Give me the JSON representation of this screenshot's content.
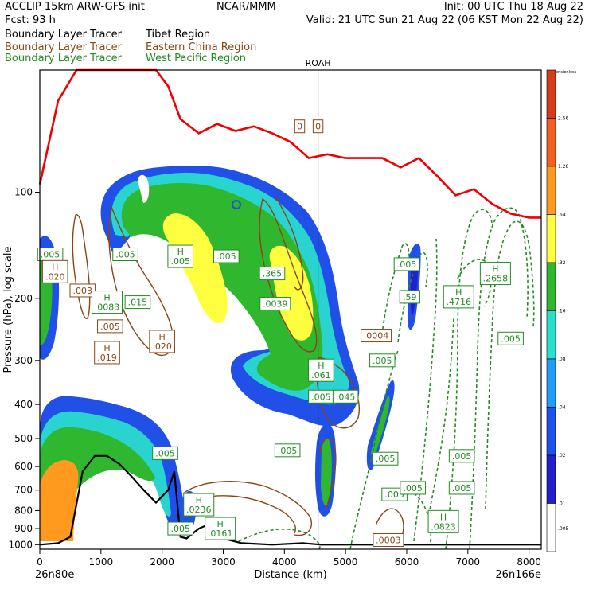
{
  "header": {
    "line1_left": "ACCLIP 15km ARW-GFS init",
    "line1_center": "NCAR/MMM",
    "line1_right": "Init: 00 UTC Thu 18 Aug 22",
    "line2_left": "Fcst:    93 h",
    "line2_right": "Valid: 21 UTC Sun 21 Aug 22 (06 KST Mon 22 Aug 22)",
    "legend": [
      {
        "tracer": "Boundary Layer Tracer",
        "region": "Tibet Region",
        "color": "#000000"
      },
      {
        "tracer": "Boundary Layer Tracer",
        "region": "Eastern China Region",
        "color": "#8b4513"
      },
      {
        "tracer": "Boundary Layer Tracer",
        "region": "West Pacific Region",
        "color": "#228b22"
      }
    ]
  },
  "chart_data": {
    "type": "cross-section",
    "xlabel": "Distance (km)",
    "ylabel": "Pressure (hPa), log scale",
    "x_ticks": [
      0,
      1000,
      2000,
      3000,
      4000,
      5000,
      6000,
      7000,
      8000
    ],
    "y_ticks": [
      100,
      200,
      300,
      400,
      500,
      600,
      700,
      800,
      900,
      1000
    ],
    "xlim": [
      0,
      8200
    ],
    "ylim": [
      1030,
      45
    ],
    "y_scale": "log",
    "left_endpoint": "26n80e",
    "right_endpoint": "26n166e",
    "vertical_marker": {
      "label": "ROAH",
      "x_km": 4550
    },
    "colorbar": {
      "title": "Dimensionless",
      "levels": [
        "2.56",
        "1.28",
        ".64",
        ".32",
        ".16",
        ".08",
        ".04",
        ".02",
        ".01",
        ".005"
      ],
      "colors": [
        "#d93a1a",
        "#f4601f",
        "#ff9a1f",
        "#ffff3f",
        "#2fb82f",
        "#29e0d0",
        "#1f9dff",
        "#1f50f0",
        "#2020d0",
        "#ffffff"
      ]
    },
    "series": [
      {
        "name": "Tibet Region",
        "color": "#000000"
      },
      {
        "name": "Eastern China Region",
        "color": "#8b4513"
      },
      {
        "name": "West Pacific Region",
        "color": "#228b22"
      }
    ],
    "tropopause": {
      "color": "#ee0000",
      "x": [
        0,
        300,
        600,
        900,
        1200,
        1500,
        1700,
        1900,
        2100,
        2300,
        2600,
        2900,
        3200,
        3500,
        3800,
        4100,
        4400,
        4700,
        5000,
        5300,
        5600,
        5900,
        6200,
        6500,
        6800,
        7100,
        7400,
        7700,
        8000,
        8200
      ],
      "y": [
        95,
        55,
        45,
        45,
        45,
        45,
        45,
        45,
        50,
        62,
        68,
        64,
        67,
        65,
        68,
        72,
        80,
        78,
        80,
        80,
        80,
        85,
        80,
        90,
        102,
        98,
        108,
        115,
        118,
        118
      ]
    },
    "terrain": {
      "x": [
        0,
        300,
        500,
        700,
        900,
        1100,
        1300,
        1500,
        1700,
        1900,
        2100,
        2200,
        2300,
        2400,
        2600,
        2800,
        3000,
        3300,
        3800,
        4300,
        4600,
        5000,
        5600,
        6200,
        7000,
        8200
      ],
      "y": [
        1000,
        990,
        950,
        620,
        560,
        560,
        590,
        640,
        700,
        760,
        700,
        620,
        950,
        960,
        900,
        870,
        960,
        990,
        1000,
        990,
        1000,
        1000,
        1000,
        1000,
        1000,
        1000
      ]
    },
    "labels": [
      {
        "text": "0",
        "x": 4250,
        "y": 65,
        "color": "#8b4513"
      },
      {
        "text": "0",
        "x": 4550,
        "y": 65,
        "color": "#8b4513"
      },
      {
        "text": ".005",
        "x": 170,
        "y": 150,
        "color": "#228b22"
      },
      {
        "text": ".005",
        "x": 1400,
        "y": 150,
        "color": "#228b22"
      },
      {
        "text": "H\n.005",
        "x": 2300,
        "y": 152,
        "color": "#228b22"
      },
      {
        "text": ".005",
        "x": 3050,
        "y": 152,
        "color": "#228b22"
      },
      {
        "text": "H\n.020",
        "x": 250,
        "y": 168,
        "color": "#8b4513"
      },
      {
        "text": ".003",
        "x": 700,
        "y": 190,
        "color": "#8b4513"
      },
      {
        "text": "H\n.0083",
        "x": 1100,
        "y": 205,
        "color": "#228b22"
      },
      {
        "text": ".015",
        "x": 1600,
        "y": 205,
        "color": "#228b22"
      },
      {
        "text": ".005",
        "x": 1150,
        "y": 240,
        "color": "#8b4513"
      },
      {
        "text": "H\n.019",
        "x": 1100,
        "y": 285,
        "color": "#8b4513"
      },
      {
        "text": "H\n.020",
        "x": 2000,
        "y": 265,
        "color": "#8b4513"
      },
      {
        "text": ".365",
        "x": 3800,
        "y": 170,
        "color": "#228b22"
      },
      {
        "text": ".0039",
        "x": 3850,
        "y": 207,
        "color": "#228b22"
      },
      {
        "text": "H\n.061",
        "x": 4600,
        "y": 320,
        "color": "#228b22"
      },
      {
        "text": ".005",
        "x": 4600,
        "y": 380,
        "color": "#228b22"
      },
      {
        "text": ".045",
        "x": 5000,
        "y": 380,
        "color": "#228b22"
      },
      {
        "text": ".0004",
        "x": 5500,
        "y": 255,
        "color": "#8b4513"
      },
      {
        "text": ".005",
        "x": 5600,
        "y": 300,
        "color": "#228b22"
      },
      {
        "text": ".005",
        "x": 6000,
        "y": 160,
        "color": "#228b22"
      },
      {
        "text": ".59",
        "x": 6050,
        "y": 198,
        "color": "#228b22"
      },
      {
        "text": "H\n.4716",
        "x": 6850,
        "y": 198,
        "color": "#228b22"
      },
      {
        "text": "H\n.2658",
        "x": 7450,
        "y": 170,
        "color": "#228b22"
      },
      {
        "text": ".005",
        "x": 7700,
        "y": 260,
        "color": "#228b22"
      },
      {
        "text": ".005",
        "x": 2050,
        "y": 550,
        "color": "#228b22"
      },
      {
        "text": "H\n.0236",
        "x": 2600,
        "y": 770,
        "color": "#228b22"
      },
      {
        "text": ".005",
        "x": 2300,
        "y": 900,
        "color": "#228b22"
      },
      {
        "text": "H\n.0161",
        "x": 2950,
        "y": 900,
        "color": "#228b22"
      },
      {
        "text": ".005",
        "x": 4050,
        "y": 540,
        "color": "#228b22"
      },
      {
        "text": ".005",
        "x": 5650,
        "y": 570,
        "color": "#228b22"
      },
      {
        "text": ".005",
        "x": 5800,
        "y": 720,
        "color": "#228b22"
      },
      {
        "text": ".005",
        "x": 6100,
        "y": 690,
        "color": "#228b22"
      },
      {
        "text": ".005",
        "x": 6900,
        "y": 560,
        "color": "#228b22"
      },
      {
        "text": ".005",
        "x": 6900,
        "y": 690,
        "color": "#228b22"
      },
      {
        "text": "H\n.0823",
        "x": 6600,
        "y": 860,
        "color": "#228b22"
      },
      {
        "text": ".0003",
        "x": 5700,
        "y": 970,
        "color": "#8b4513"
      }
    ]
  }
}
